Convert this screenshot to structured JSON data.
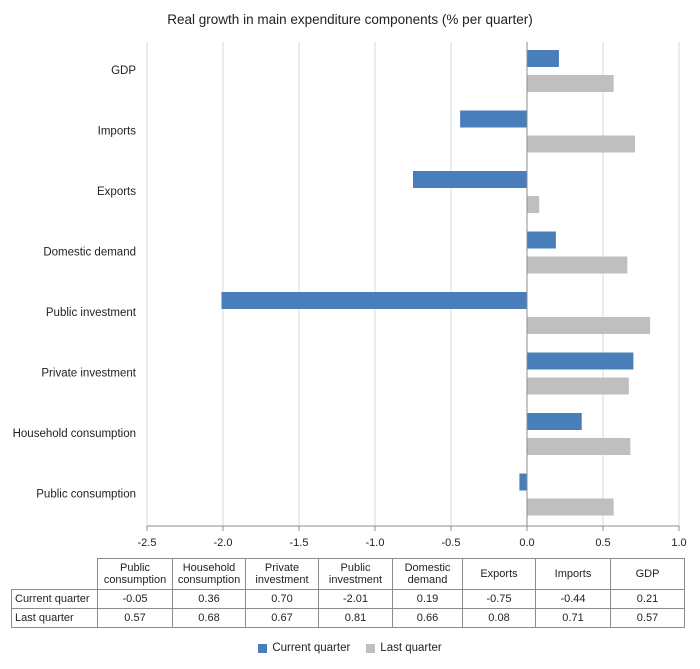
{
  "chart_data": {
    "type": "bar",
    "orientation": "horizontal",
    "title": "Real growth in main expenditure components (% per quarter)",
    "categories": [
      "Public consumption",
      "Household consumption",
      "Private investment",
      "Public investment",
      "Domestic demand",
      "Exports",
      "Imports",
      "GDP"
    ],
    "table_headers": [
      "Public consumption",
      "Household consumption",
      "Private investment",
      "Public investment",
      "Domestic demand",
      "Exports",
      "Imports",
      "GDP"
    ],
    "series": [
      {
        "name": "Current quarter",
        "values": [
          -0.05,
          0.36,
          0.7,
          -2.01,
          0.19,
          -0.75,
          -0.44,
          0.21
        ],
        "color": "#4a7ebb"
      },
      {
        "name": "Last quarter",
        "values": [
          0.57,
          0.68,
          0.67,
          0.81,
          0.66,
          0.08,
          0.71,
          0.57
        ],
        "color": "#bfbfbf"
      }
    ],
    "series_text": [
      [
        "-0.05",
        "0.36",
        "0.70",
        "-2.01",
        "0.19",
        "-0.75",
        "-0.44",
        "0.21"
      ],
      [
        "0.57",
        "0.68",
        "0.67",
        "0.81",
        "0.66",
        "0.08",
        "0.71",
        "0.57"
      ]
    ],
    "xlim": [
      -2.5,
      1.0
    ],
    "x_ticks": [
      -2.5,
      -2.0,
      -1.5,
      -1.0,
      -0.5,
      0.0,
      0.5,
      1.0
    ],
    "x_tick_labels": [
      "-2.5",
      "-2.0",
      "-1.5",
      "-1.0",
      "-0.5",
      "0.0",
      "0.5",
      "1.0"
    ],
    "grid": "vertical",
    "legend_position": "bottom",
    "data_table": true
  }
}
